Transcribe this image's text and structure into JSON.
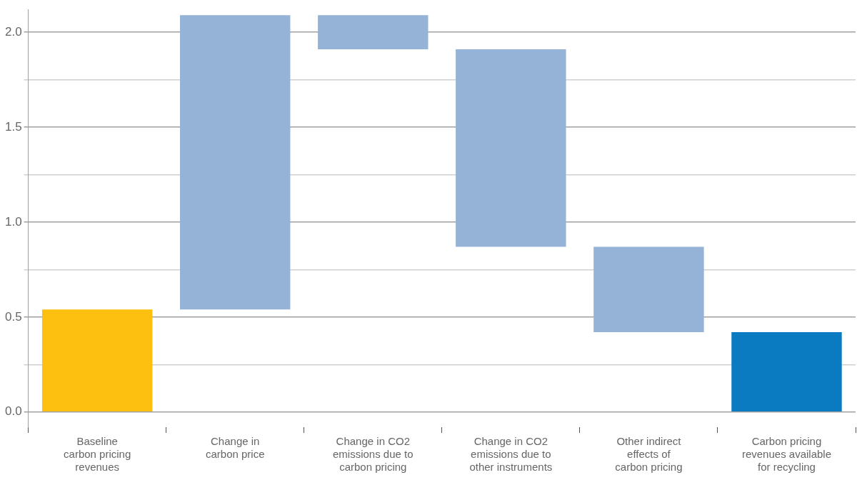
{
  "chart_data": {
    "type": "bar",
    "categories": [
      "Baseline\ncarbon pricing\nrevenues",
      "Change in\ncarbon price",
      "Change in CO2\nemissions due to\ncarbon pricing",
      "Change in CO2\nemissions due to\nother instruments",
      "Other indirect\neffects of\ncarbon pricing",
      "Carbon pricing\nrevenues available\nfor recycling"
    ],
    "values": [
      0.54,
      1.55,
      -0.18,
      -1.04,
      -0.45,
      0.42
    ],
    "base": [
      0,
      0.54,
      2.09,
      1.91,
      0.87,
      0
    ],
    "colors": [
      "#fdc010",
      "#95b3d7",
      "#95b3d7",
      "#95b3d7",
      "#95b3d7",
      "#0a7bc1"
    ],
    "ylim": [
      -0.08,
      2.12
    ],
    "yticks": [
      {
        "value": 0,
        "label": "0.0"
      },
      {
        "value": 0.25,
        "label": null
      },
      {
        "value": 0.5,
        "label": "0.5"
      },
      {
        "value": 0.75,
        "label": null
      },
      {
        "value": 1,
        "label": "1.0"
      },
      {
        "value": 1.25,
        "label": null
      },
      {
        "value": 1.5,
        "label": "1.5"
      },
      {
        "value": 1.75,
        "label": null
      },
      {
        "value": 2,
        "label": "2.0"
      }
    ],
    "grid": "y",
    "legend": false
  }
}
